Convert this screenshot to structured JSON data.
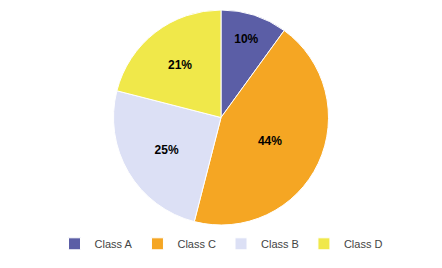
{
  "chart_data": {
    "type": "pie",
    "categories": [
      "Class A",
      "Class C",
      "Class B",
      "Class D"
    ],
    "values": [
      10,
      44,
      25,
      21
    ],
    "value_labels": [
      "10%",
      "44%",
      "25%",
      "21%"
    ],
    "colors": [
      "#5b5ea6",
      "#f5a623",
      "#dce0f5",
      "#f0e84a"
    ],
    "data_labels": true,
    "legend": "bottom"
  }
}
